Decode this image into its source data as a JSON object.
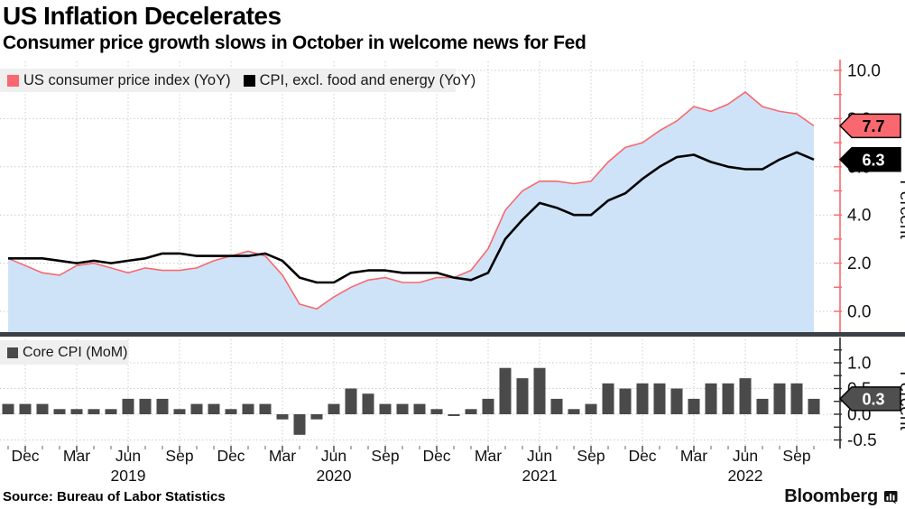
{
  "header": {
    "title": "US Inflation Decelerates",
    "subtitle": "Consumer price growth slows in October in welcome news for Fed"
  },
  "source": "Source: Bureau of Labor Statistics",
  "branding": {
    "name": "Bloomberg"
  },
  "colors": {
    "cpi_line": "#f8686e",
    "cpi_fill": "#cfe3f8",
    "core_line": "#000000",
    "bar": "#4a4a4a",
    "grid": "#cccccc",
    "legend_bg": "#efefef",
    "separator": "#3b3f46",
    "axis_top": "#f8686e",
    "axis_bottom": "#2b2b2b",
    "tick_text": "#1a1a1a",
    "badge_cpi_bg": "#f8686e",
    "badge_cpi_text": "#000000",
    "badge_core_bg": "#000000",
    "badge_core_text": "#ffffff",
    "badge_mom_bg": "#4f4f4f",
    "badge_mom_text": "#ffffff"
  },
  "x_axis": {
    "labels": [
      "Dec",
      "Mar",
      "Jun",
      "Sep",
      "Dec",
      "Mar",
      "Jun",
      "Sep",
      "Dec",
      "Mar",
      "Jun",
      "Sep",
      "Dec",
      "Mar",
      "Jun",
      "Sep"
    ],
    "years": [
      {
        "label": "2019",
        "tick_index": 2
      },
      {
        "label": "2020",
        "tick_index": 6
      },
      {
        "label": "2021",
        "tick_index": 10
      },
      {
        "label": "2022",
        "tick_index": 14
      }
    ]
  },
  "chart_data": [
    {
      "type": "area",
      "panel": "top",
      "ylabel": "Percent",
      "x_start": "Nov 2018",
      "x_end": "Oct 2022",
      "x_step": "month",
      "ylim": [
        -0.9,
        10.3
      ],
      "yticks": [
        0.0,
        2.0,
        4.0,
        6.0,
        8.0,
        10.0
      ],
      "ytick_labels": [
        "0.0",
        "2.0",
        "4.0",
        "6.0",
        "8.0",
        "10.0"
      ],
      "grid": true,
      "legend_position": "top-left-strip",
      "series": [
        {
          "name": "US consumer price index (YoY)",
          "style": "area",
          "badge": "7.7",
          "values": [
            2.2,
            1.9,
            1.6,
            1.5,
            1.9,
            2.0,
            1.8,
            1.6,
            1.8,
            1.7,
            1.7,
            1.8,
            2.1,
            2.3,
            2.5,
            2.3,
            1.5,
            0.3,
            0.1,
            0.6,
            1.0,
            1.3,
            1.4,
            1.2,
            1.2,
            1.4,
            1.4,
            1.7,
            2.6,
            4.2,
            5.0,
            5.4,
            5.4,
            5.3,
            5.4,
            6.2,
            6.8,
            7.0,
            7.5,
            7.9,
            8.5,
            8.3,
            8.6,
            9.1,
            8.5,
            8.3,
            8.2,
            7.7
          ]
        },
        {
          "name": "CPI, excl. food and energy (YoY)",
          "style": "line",
          "badge": "6.3",
          "values": [
            2.2,
            2.2,
            2.2,
            2.1,
            2.0,
            2.1,
            2.0,
            2.1,
            2.2,
            2.4,
            2.4,
            2.3,
            2.3,
            2.3,
            2.3,
            2.4,
            2.1,
            1.4,
            1.2,
            1.2,
            1.6,
            1.7,
            1.7,
            1.6,
            1.6,
            1.6,
            1.4,
            1.3,
            1.6,
            3.0,
            3.8,
            4.5,
            4.3,
            4.0,
            4.0,
            4.6,
            4.9,
            5.5,
            6.0,
            6.4,
            6.5,
            6.2,
            6.0,
            5.9,
            5.9,
            6.3,
            6.6,
            6.3
          ]
        }
      ]
    },
    {
      "type": "bar",
      "panel": "bottom",
      "ylabel": "Percent",
      "x_start": "Nov 2018",
      "x_end": "Oct 2022",
      "x_step": "month",
      "ylim": [
        -0.7,
        1.45
      ],
      "yticks": [
        -0.5,
        0.0,
        0.5,
        1.0
      ],
      "ytick_labels": [
        "-0.5",
        "0.0",
        "0.5",
        "1.0"
      ],
      "grid": true,
      "legend_position": "top-left-box",
      "series": [
        {
          "name": "Core CPI (MoM)",
          "style": "bar",
          "badge": "0.3",
          "values": [
            0.2,
            0.2,
            0.2,
            0.1,
            0.1,
            0.1,
            0.1,
            0.3,
            0.3,
            0.3,
            0.1,
            0.2,
            0.2,
            0.1,
            0.2,
            0.2,
            -0.1,
            -0.4,
            -0.1,
            0.2,
            0.5,
            0.4,
            0.2,
            0.2,
            0.2,
            0.1,
            0.0,
            0.1,
            0.3,
            0.9,
            0.7,
            0.9,
            0.3,
            0.1,
            0.2,
            0.6,
            0.5,
            0.6,
            0.6,
            0.5,
            0.3,
            0.6,
            0.6,
            0.7,
            0.3,
            0.6,
            0.6,
            0.3
          ]
        }
      ]
    }
  ]
}
